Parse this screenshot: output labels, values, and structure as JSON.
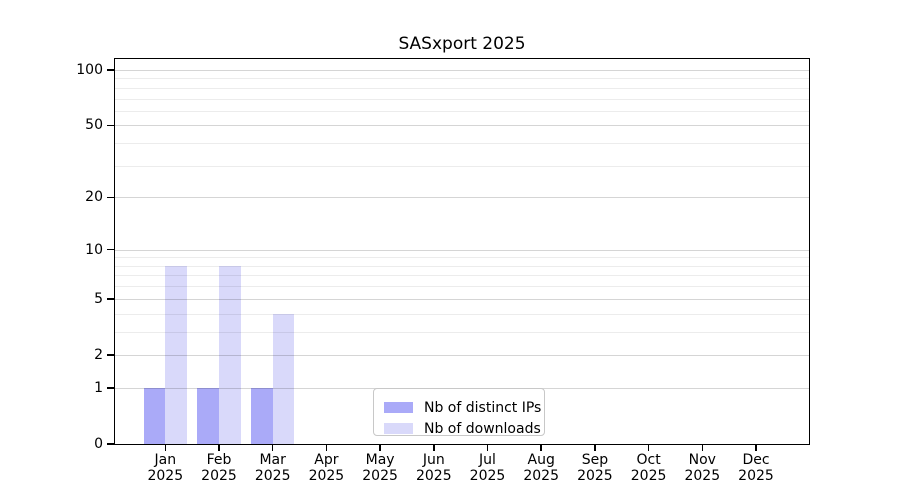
{
  "chart_data": {
    "type": "bar",
    "title": "SASxport 2025",
    "year": "2025",
    "categories": [
      "Jan",
      "Feb",
      "Mar",
      "Apr",
      "May",
      "Jun",
      "Jul",
      "Aug",
      "Sep",
      "Oct",
      "Nov",
      "Dec"
    ],
    "series": [
      {
        "name": "Nb of distinct IPs",
        "color": "#aaaaf8",
        "values": [
          1,
          1,
          1,
          0,
          0,
          0,
          0,
          0,
          0,
          0,
          0,
          0
        ]
      },
      {
        "name": "Nb of downloads",
        "color": "#d9d9fa",
        "values": [
          8,
          8,
          4,
          0,
          0,
          0,
          0,
          0,
          0,
          0,
          0,
          0
        ]
      }
    ],
    "y_scale": "log1p",
    "ylim": [
      0,
      100
    ],
    "y_ticks": [
      0,
      1,
      2,
      5,
      10,
      20,
      50,
      100
    ],
    "y_minor_gridlines": [
      3,
      4,
      6,
      7,
      8,
      9,
      30,
      40,
      60,
      70,
      80,
      90
    ],
    "grid": "horizontal",
    "legend_position": "bottom-center",
    "axis_color": "#000000",
    "background_color": "#ffffff"
  }
}
